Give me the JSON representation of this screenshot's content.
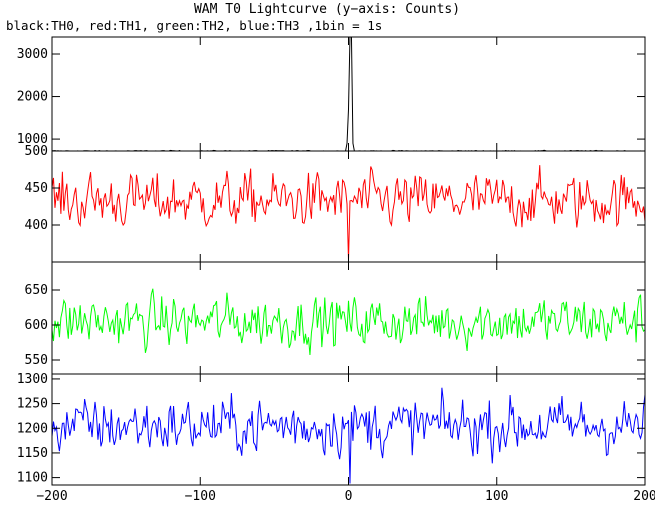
{
  "chart_data": {
    "type": "line",
    "title": "WAM T0 Lightcurve (y−axis: Counts)",
    "subtitle": "black:TH0, red:TH1, green:TH2, blue:TH3 ,1bin = 1s",
    "x_range": [
      -200,
      200
    ],
    "x_ticks": [
      -200,
      -100,
      0,
      100,
      200
    ],
    "x_tick_labels": [
      "−200",
      "−100",
      "0",
      "100",
      "200"
    ],
    "grid": false,
    "panels": [
      {
        "name": "TH0",
        "color": "#000000",
        "ylim": [
          720,
          3400
        ],
        "yticks": [
          1000,
          2000,
          3000
        ],
        "ytick_labels": [
          "1000",
          "2000",
          "3000"
        ],
        "baseline": 720,
        "noise": 18,
        "burst": [
          {
            "x": -1,
            "y": 900
          },
          {
            "x": 0,
            "y": 1700
          },
          {
            "x": 1,
            "y": 3400
          },
          {
            "x": 2,
            "y": 3400
          },
          {
            "x": 3,
            "y": 900
          }
        ]
      },
      {
        "name": "TH1",
        "color": "#ff0000",
        "ylim": [
          350,
          500
        ],
        "yticks": [
          400,
          450,
          500
        ],
        "ytick_labels": [
          "400",
          "450",
          "500"
        ],
        "baseline": 433,
        "noise": 25,
        "burst": [
          {
            "x": 0,
            "y": 352
          }
        ]
      },
      {
        "name": "TH2",
        "color": "#00ff00",
        "ylim": [
          530,
          690
        ],
        "yticks": [
          550,
          600,
          650
        ],
        "ytick_labels": [
          "550",
          "600",
          "650"
        ],
        "baseline": 605,
        "noise": 25
      },
      {
        "name": "TH3",
        "color": "#0000ff",
        "ylim": [
          1085,
          1310
        ],
        "yticks": [
          1100,
          1150,
          1200,
          1250,
          1300
        ],
        "ytick_labels": [
          "1100",
          "1150",
          "1200",
          "1250",
          "1300"
        ],
        "baseline": 1205,
        "noise": 38,
        "burst": [
          {
            "x": 1,
            "y": 1088
          }
        ]
      }
    ]
  }
}
